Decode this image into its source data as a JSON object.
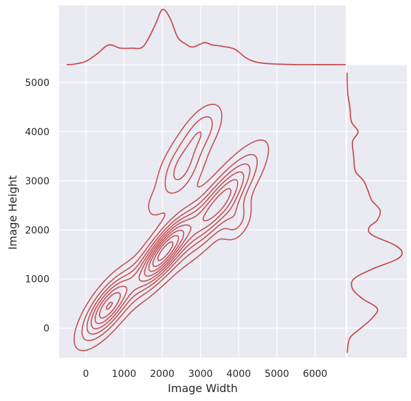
{
  "chart_data": {
    "type": "joint-kde",
    "style": {
      "background": "#eaeaf2",
      "grid": true,
      "grid_color": "#ffffff",
      "line_color": "#c44e52"
    },
    "xlabel": "Image Width",
    "ylabel": "Image Height",
    "xlim": [
      -700,
      6800
    ],
    "ylim": [
      -600,
      5350
    ],
    "xticks": [
      0,
      1000,
      2000,
      3000,
      4000,
      5000,
      6000
    ],
    "yticks": [
      0,
      1000,
      2000,
      3000,
      4000,
      5000
    ],
    "contour_levels": 9,
    "clusters": [
      {
        "cx": 600,
        "cy": 450,
        "sx": 420,
        "sy": 420,
        "rho": 0.75,
        "w": 1.0
      },
      {
        "cx": 2050,
        "cy": 1550,
        "sx": 480,
        "sy": 480,
        "rho": 0.82,
        "w": 1.35
      },
      {
        "cx": 3500,
        "cy": 2550,
        "sx": 600,
        "sy": 600,
        "rho": 0.85,
        "w": 0.95
      },
      {
        "cx": 2500,
        "cy": 3250,
        "sx": 380,
        "sy": 450,
        "rho": 0.55,
        "w": 0.45
      },
      {
        "cx": 3050,
        "cy": 4050,
        "sx": 330,
        "sy": 330,
        "rho": 0.55,
        "w": 0.3
      },
      {
        "cx": 3950,
        "cy": 2200,
        "sx": 240,
        "sy": 260,
        "rho": 0.4,
        "w": 0.3
      },
      {
        "cx": 1800,
        "cy": 2500,
        "sx": 180,
        "sy": 200,
        "rho": 0.3,
        "w": 0.1
      }
    ],
    "marginal_x": {
      "x": [
        -500,
        -300,
        0,
        300,
        600,
        900,
        1200,
        1500,
        1800,
        2000,
        2200,
        2400,
        2600,
        2800,
        3100,
        3300,
        3600,
        3900,
        4200,
        4500,
        5000,
        5600,
        6800
      ],
      "density": [
        0.0,
        0.01,
        0.06,
        0.2,
        0.36,
        0.3,
        0.3,
        0.33,
        0.7,
        1.0,
        0.85,
        0.5,
        0.38,
        0.32,
        0.4,
        0.36,
        0.33,
        0.28,
        0.12,
        0.04,
        0.01,
        0.0,
        0.0
      ]
    },
    "marginal_y": {
      "y": [
        -500,
        -200,
        0,
        200,
        400,
        600,
        800,
        1000,
        1200,
        1400,
        1550,
        1700,
        1900,
        2050,
        2200,
        2400,
        2600,
        2800,
        3000,
        3200,
        3500,
        3800,
        4000,
        4200,
        4500,
        4800,
        5200
      ],
      "density": [
        0.0,
        0.05,
        0.25,
        0.45,
        0.55,
        0.28,
        0.1,
        0.12,
        0.45,
        0.9,
        1.0,
        0.85,
        0.45,
        0.4,
        0.55,
        0.6,
        0.45,
        0.38,
        0.3,
        0.15,
        0.12,
        0.1,
        0.2,
        0.08,
        0.05,
        0.01,
        0.0
      ]
    }
  }
}
